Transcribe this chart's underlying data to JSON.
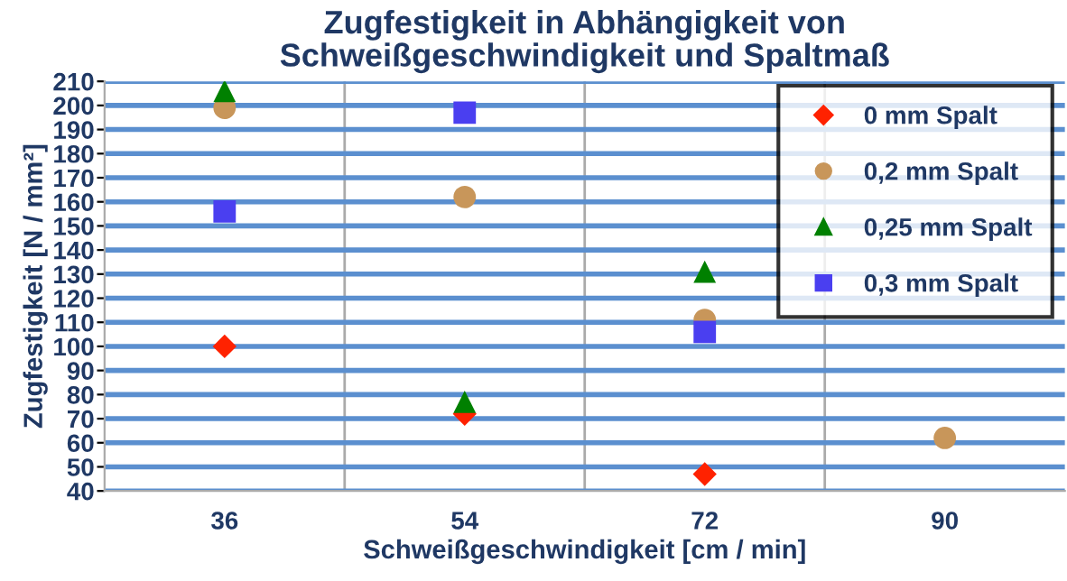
{
  "chart_data": {
    "type": "scatter",
    "title": "Zugfestigkeit in Abhängigkeit von\nSchweißgeschwindigkeit und Spaltmaß",
    "xlabel": "Schweißgeschwindigkeit [cm / min]",
    "ylabel": "Zugfestigkeit [N / mm²]",
    "categories": [
      "36",
      "54",
      "72",
      "90"
    ],
    "series": [
      {
        "name": "0 mm Spalt",
        "color": "#ff2200",
        "marker": "diamond",
        "values": [
          100,
          72,
          47,
          null
        ]
      },
      {
        "name": "0,2 mm Spalt",
        "color": "#c8965a",
        "marker": "circle",
        "values": [
          199,
          162,
          111,
          62
        ]
      },
      {
        "name": "0,25 mm Spalt",
        "color": "#008000",
        "marker": "triangle",
        "values": [
          206,
          77,
          131,
          null
        ]
      },
      {
        "name": "0,3 mm Spalt",
        "color": "#4a3ff0",
        "marker": "square",
        "values": [
          156,
          197,
          106,
          null
        ]
      }
    ],
    "ylim": [
      40,
      210
    ],
    "yticks": [
      40,
      50,
      60,
      70,
      80,
      90,
      100,
      110,
      120,
      130,
      140,
      150,
      160,
      170,
      180,
      190,
      200,
      210
    ],
    "grid": true,
    "legend": "top right"
  }
}
